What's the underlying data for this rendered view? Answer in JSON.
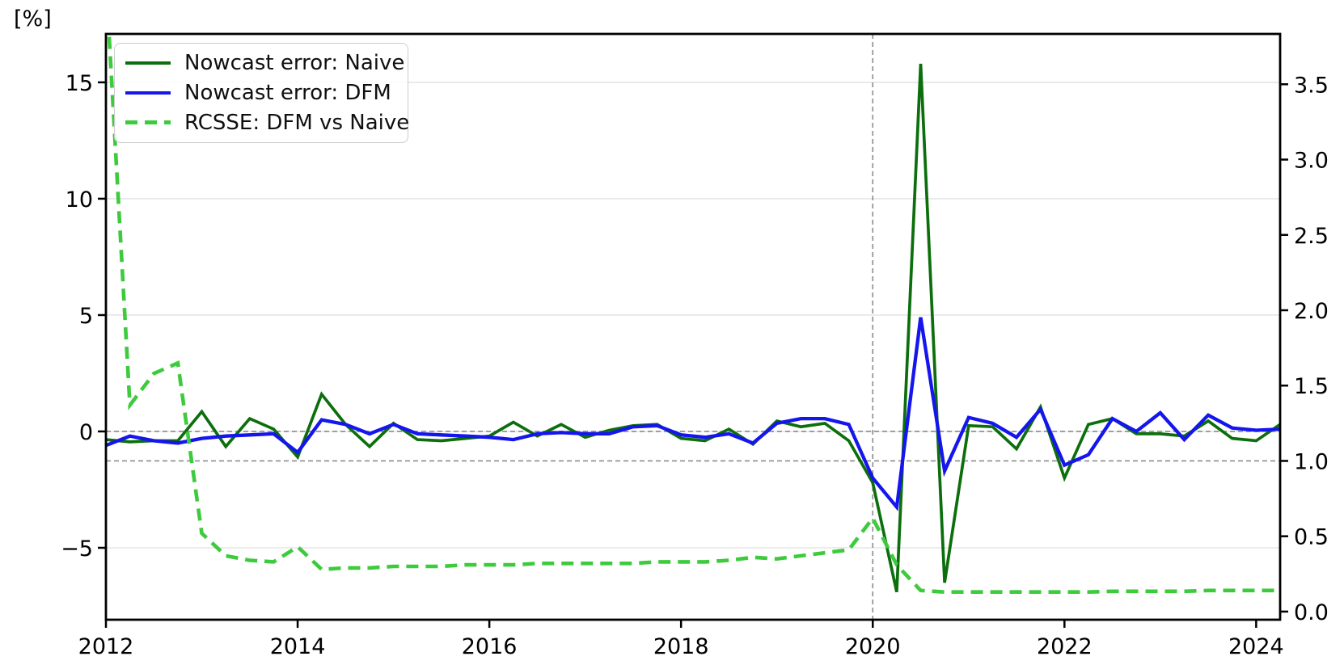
{
  "figure": {
    "unit_label": "[%]"
  },
  "legend": {
    "items": [
      {
        "label": "Nowcast error: Naive",
        "color": "#0c6e0c",
        "style": "solid"
      },
      {
        "label": "Nowcast error: DFM",
        "color": "#1515ee",
        "style": "solid"
      },
      {
        "label": "RCSSE: DFM vs Naive",
        "color": "#3dcb3d",
        "style": "dashed"
      }
    ]
  },
  "chart_data": {
    "type": "line",
    "title": "",
    "grid": "horizontal-left-ticks",
    "colors": {
      "naive": "#0c6e0c",
      "dfm": "#1515ee",
      "rcsse": "#3dcb3d",
      "grid": "#e0e0e0",
      "reference": "#808080",
      "spine": "#000000"
    },
    "x_axis": {
      "range": [
        2012,
        2024.25
      ],
      "ticks": [
        {
          "v": 2012,
          "label": "2012"
        },
        {
          "v": 2014,
          "label": "2014"
        },
        {
          "v": 2016,
          "label": "2016"
        },
        {
          "v": 2018,
          "label": "2018"
        },
        {
          "v": 2020,
          "label": "2020"
        },
        {
          "v": 2022,
          "label": "2022"
        },
        {
          "v": 2024,
          "label": "2024"
        }
      ]
    },
    "left_axis": {
      "unit": "[%]",
      "range": [
        -8.09,
        17.08
      ],
      "ticks": [
        {
          "v": 15,
          "label": "15"
        },
        {
          "v": 10,
          "label": "10"
        },
        {
          "v": 5,
          "label": "5"
        },
        {
          "v": 0,
          "label": "0"
        },
        {
          "v": -5,
          "label": "−5"
        }
      ]
    },
    "right_axis": {
      "range": [
        -0.054,
        3.834
      ],
      "ticks": [
        {
          "v": 3.5,
          "label": "3.5"
        },
        {
          "v": 3.0,
          "label": "3.0"
        },
        {
          "v": 2.5,
          "label": "2.5"
        },
        {
          "v": 2.0,
          "label": "2.0"
        },
        {
          "v": 1.5,
          "label": "1.5"
        },
        {
          "v": 1.0,
          "label": "1.0"
        },
        {
          "v": 0.5,
          "label": "0.5"
        },
        {
          "v": 0.0,
          "label": "0.0"
        }
      ]
    },
    "reference_lines": [
      {
        "orientation": "horizontal",
        "axis": "left",
        "value": 0
      },
      {
        "orientation": "horizontal",
        "axis": "right",
        "value": 1.0
      },
      {
        "orientation": "vertical",
        "value": 2020
      }
    ],
    "x": [
      2012.0,
      2012.25,
      2012.5,
      2012.75,
      2013.0,
      2013.25,
      2013.5,
      2013.75,
      2014.0,
      2014.25,
      2014.5,
      2014.75,
      2015.0,
      2015.25,
      2015.5,
      2015.75,
      2016.0,
      2016.25,
      2016.5,
      2016.75,
      2017.0,
      2017.25,
      2017.5,
      2017.75,
      2018.0,
      2018.25,
      2018.5,
      2018.75,
      2019.0,
      2019.25,
      2019.5,
      2019.75,
      2020.0,
      2020.25,
      2020.5,
      2020.75,
      2021.0,
      2021.25,
      2021.5,
      2021.75,
      2022.0,
      2022.25,
      2022.5,
      2022.75,
      2023.0,
      2023.25,
      2023.5,
      2023.75,
      2024.0,
      2024.25
    ],
    "series": [
      {
        "name": "Nowcast error: Naive",
        "axis": "left",
        "color": "#0c6e0c",
        "style": "solid",
        "values": [
          -0.35,
          -0.45,
          -0.4,
          -0.4,
          0.85,
          -0.65,
          0.55,
          0.1,
          -1.1,
          1.6,
          0.3,
          -0.65,
          0.35,
          -0.35,
          -0.4,
          -0.3,
          -0.2,
          0.4,
          -0.2,
          0.3,
          -0.25,
          0.05,
          0.25,
          0.3,
          -0.3,
          -0.4,
          0.1,
          -0.55,
          0.45,
          0.2,
          0.35,
          -0.4,
          -2.2,
          -6.9,
          15.8,
          -6.5,
          0.25,
          0.2,
          -0.75,
          1.05,
          -2.0,
          0.3,
          0.55,
          -0.1,
          -0.1,
          -0.2,
          0.45,
          -0.3,
          -0.4,
          0.3
        ]
      },
      {
        "name": "Nowcast error: DFM",
        "axis": "left",
        "color": "#1515ee",
        "style": "solid",
        "values": [
          -0.6,
          -0.2,
          -0.4,
          -0.5,
          -0.3,
          -0.2,
          -0.15,
          -0.1,
          -0.9,
          0.5,
          0.3,
          -0.1,
          0.3,
          -0.1,
          -0.15,
          -0.2,
          -0.25,
          -0.35,
          -0.1,
          -0.05,
          -0.1,
          -0.1,
          0.2,
          0.25,
          -0.15,
          -0.25,
          -0.1,
          -0.5,
          0.35,
          0.55,
          0.55,
          0.3,
          -2.0,
          -3.25,
          4.9,
          -1.7,
          0.6,
          0.35,
          -0.25,
          0.95,
          -1.45,
          -1.0,
          0.55,
          0.0,
          0.8,
          -0.35,
          0.7,
          0.15,
          0.05,
          0.1
        ]
      },
      {
        "name": "RCSSE: DFM vs Naive",
        "axis": "right",
        "color": "#3dcb3d",
        "style": "dashed",
        "values": [
          4.2,
          1.37,
          1.58,
          1.65,
          0.52,
          0.37,
          0.34,
          0.33,
          0.43,
          0.28,
          0.29,
          0.29,
          0.3,
          0.3,
          0.3,
          0.31,
          0.31,
          0.31,
          0.32,
          0.32,
          0.32,
          0.32,
          0.32,
          0.33,
          0.33,
          0.33,
          0.34,
          0.36,
          0.35,
          0.37,
          0.39,
          0.41,
          0.62,
          0.31,
          0.14,
          0.13,
          0.13,
          0.13,
          0.13,
          0.13,
          0.13,
          0.13,
          0.135,
          0.135,
          0.135,
          0.135,
          0.14,
          0.14,
          0.14,
          0.14
        ]
      }
    ]
  }
}
